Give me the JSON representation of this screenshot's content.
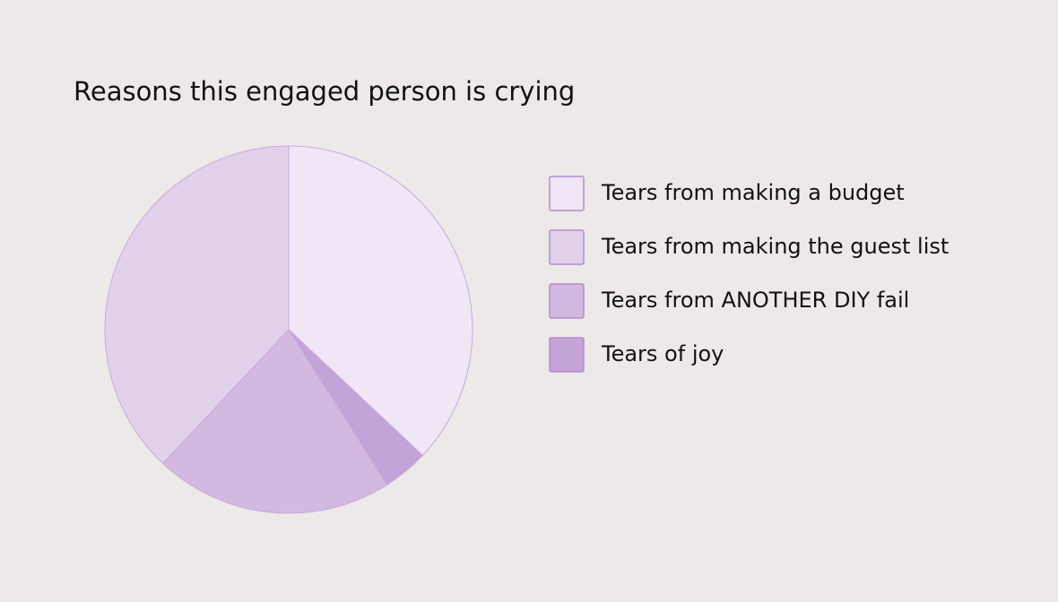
{
  "chart_data": {
    "type": "pie",
    "title": "Reasons this engaged person is crying",
    "categories": [
      "Tears from making a budget",
      "Tears from making the guest list",
      "Tears from ANOTHER DIY fail",
      "Tears of joy"
    ],
    "values": [
      37,
      38,
      21,
      4
    ],
    "colors": [
      "#f0e6f6",
      "#e1d1eb",
      "#d3b9e0",
      "#c4a3d8"
    ]
  }
}
